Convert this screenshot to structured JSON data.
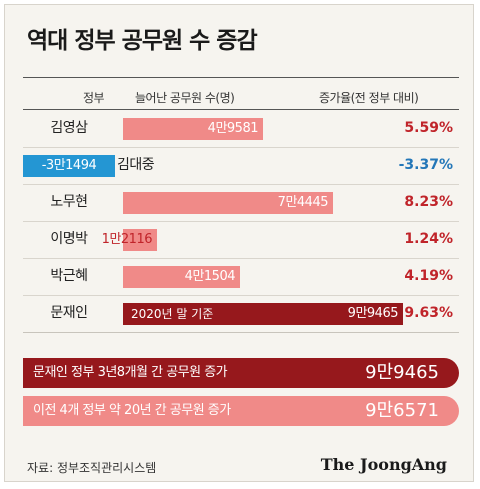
{
  "title": "역대 정부 공무원 수 증감",
  "headers": {
    "government": "정부",
    "increase": "늘어난 공무원 수(명)",
    "rate": "증가율(전 정부 대비)"
  },
  "chart_data": {
    "type": "bar",
    "title": "역대 정부 공무원 수 증감",
    "categories": [
      "김영삼",
      "김대중",
      "노무현",
      "이명박",
      "박근혜",
      "문재인"
    ],
    "series": [
      {
        "name": "늘어난 공무원 수(명)",
        "values": [
          49581,
          -31494,
          74445,
          12116,
          41504,
          99465
        ]
      },
      {
        "name": "증가율(전 정부 대비)",
        "values": [
          5.59,
          -3.37,
          8.23,
          1.24,
          4.19,
          9.63
        ]
      }
    ],
    "value_labels": [
      "4만9581",
      "-3만1494",
      "7만4445",
      "1만2116",
      "4만1504",
      "9만9465"
    ],
    "rate_labels": [
      "5.59%",
      "-3.37%",
      "8.23%",
      "1.24%",
      "4.19%",
      "9.63%"
    ],
    "annotation": "2020년 말 기준",
    "highlight": "문재인",
    "colors": {
      "positive": "#f08a88",
      "negative": "#2496d3",
      "highlight": "#96181c",
      "rate": "#c0242a",
      "rate_negative": "#2477b8"
    }
  },
  "summary": [
    {
      "label": "문재인 정부 3년8개월 간 공무원 증가",
      "value": "9만9465"
    },
    {
      "label": "이전 4개 정부 약 20년 간 공무원 증가",
      "value": "9만6571"
    }
  ],
  "source": "자료: 정부조직관리시스템",
  "brand": "The JoongAng"
}
